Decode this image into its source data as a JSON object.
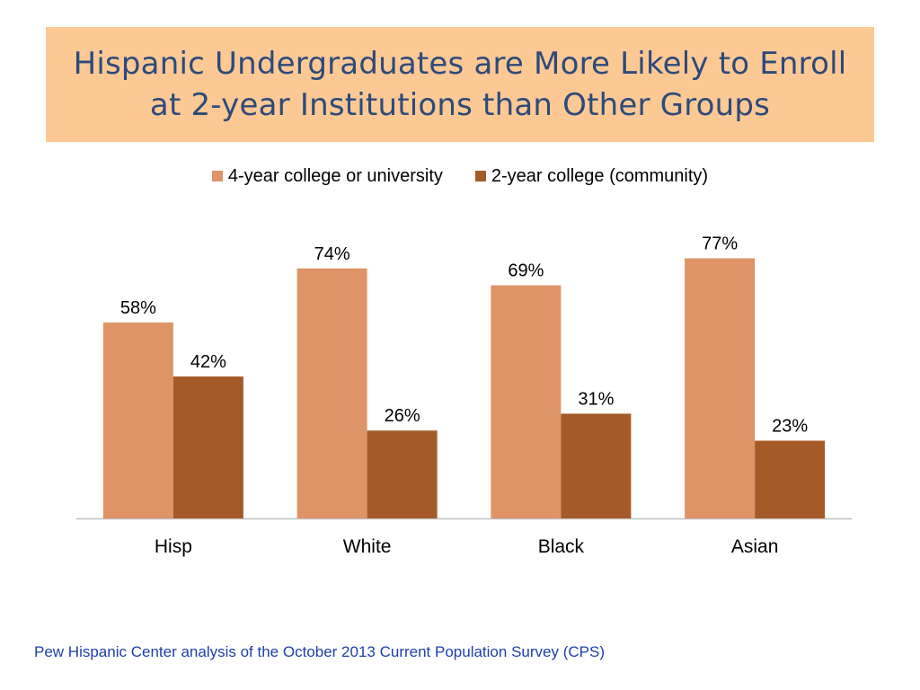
{
  "slide": {
    "title_line1": "Hispanic Undergraduates are More Likely to Enroll",
    "title_line2": "at 2-year Institutions than Other Groups",
    "source": "Pew Hispanic Center analysis of the October 2013 Current Population Survey (CPS)"
  },
  "colors": {
    "title_bg": "#fcc995",
    "title_text": "#2e4a7a",
    "source_text": "#1f3fa8"
  },
  "chart_data": {
    "type": "bar",
    "categories": [
      "Hisp",
      "White",
      "Black",
      "Asian"
    ],
    "series": [
      {
        "name": "4-year college or university",
        "color": "#de9466",
        "values": [
          58,
          74,
          69,
          77
        ],
        "labels": [
          "58%",
          "74%",
          "69%",
          "77%"
        ]
      },
      {
        "name": "2-year college (community)",
        "color": "#a45b27",
        "values": [
          42,
          26,
          31,
          23
        ],
        "labels": [
          "42%",
          "26%",
          "31%",
          "23%"
        ]
      }
    ],
    "ylim": [
      0,
      100
    ],
    "legend": "top-center",
    "grid": false
  }
}
